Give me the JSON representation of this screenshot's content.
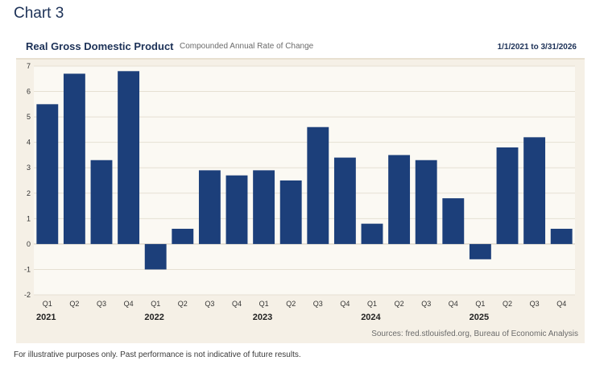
{
  "page": {
    "heading": "Chart 3",
    "disclaimer": "For illustrative purposes only. Past performance is not indicative of future results."
  },
  "colors": {
    "bar": "#1c3f7a",
    "panel_background": "#f5f0e6",
    "heading": "#1c3157"
  },
  "chart_data": {
    "type": "bar",
    "title": "Real Gross Domestic Product",
    "subtitle": "Compounded Annual Rate of Change",
    "date_range": "1/1/2021 to 3/31/2026",
    "source": "Sources: fred.stlouisfed.org, Bureau of Economic Analysis",
    "xlabel": "",
    "ylabel": "",
    "ylim": [
      -2,
      7
    ],
    "yticks": [
      "-2",
      "-1",
      "0",
      "1",
      "2",
      "3",
      "4",
      "5",
      "6",
      "7"
    ],
    "grid": true,
    "legend": "none",
    "categories": [
      "Q1",
      "Q2",
      "Q3",
      "Q4",
      "Q1",
      "Q2",
      "Q3",
      "Q4",
      "Q1",
      "Q2",
      "Q3",
      "Q4",
      "Q1",
      "Q2",
      "Q3",
      "Q4",
      "Q1",
      "Q2",
      "Q3",
      "Q4"
    ],
    "years": [
      {
        "label": "2021",
        "start_index": 0
      },
      {
        "label": "2022",
        "start_index": 4
      },
      {
        "label": "2023",
        "start_index": 8
      },
      {
        "label": "2024",
        "start_index": 12
      },
      {
        "label": "2025",
        "start_index": 16
      }
    ],
    "values": [
      5.5,
      6.7,
      3.3,
      6.8,
      -1.0,
      0.6,
      2.9,
      2.7,
      2.9,
      2.5,
      4.6,
      3.4,
      0.8,
      3.5,
      3.3,
      1.8,
      -0.6,
      3.8,
      4.2,
      0.6
    ]
  }
}
